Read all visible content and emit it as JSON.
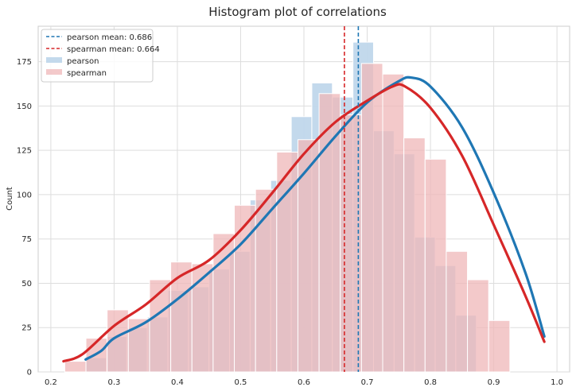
{
  "chart_data": {
    "type": "bar",
    "title": "Histogram plot of correlations",
    "xlabel": "",
    "ylabel": "Count",
    "xlim": [
      0.18,
      1.02
    ],
    "ylim": [
      0,
      195
    ],
    "xticks": [
      "0.2",
      "0.3",
      "0.4",
      "0.5",
      "0.6",
      "0.7",
      "0.8",
      "0.9",
      "1.0"
    ],
    "yticks": [
      "0",
      "25",
      "50",
      "75",
      "100",
      "125",
      "150",
      "175"
    ],
    "grid": true,
    "legend_position": "top-left",
    "colors": {
      "pearson": "#1f77b4",
      "spearman": "#d62728",
      "pearson_fill": "#c0d7eb",
      "spearman_fill": "#efb7b8",
      "grid": "#dddddd"
    },
    "mean_lines": [
      {
        "label": "pearson mean: 0.686",
        "value": 0.686,
        "series": "pearson"
      },
      {
        "label": "spearman mean: 0.664",
        "value": 0.664,
        "series": "spearman"
      }
    ],
    "series": [
      {
        "name": "pearson",
        "bin_start": 0.255,
        "bin_width": 0.0325,
        "counts": [
          8,
          20,
          25,
          31,
          46,
          48,
          58,
          68,
          97,
          108,
          144,
          163,
          155,
          186,
          136,
          123,
          76,
          60,
          32
        ],
        "kde": [
          [
            0.255,
            7
          ],
          [
            0.28,
            12
          ],
          [
            0.3,
            19
          ],
          [
            0.35,
            28
          ],
          [
            0.4,
            41
          ],
          [
            0.45,
            56
          ],
          [
            0.5,
            72
          ],
          [
            0.55,
            92
          ],
          [
            0.6,
            112
          ],
          [
            0.65,
            133
          ],
          [
            0.7,
            152
          ],
          [
            0.75,
            164
          ],
          [
            0.77,
            166
          ],
          [
            0.8,
            161
          ],
          [
            0.85,
            138
          ],
          [
            0.9,
            101
          ],
          [
            0.95,
            56
          ],
          [
            0.98,
            20
          ]
        ]
      },
      {
        "name": "spearman",
        "bin_start": 0.222,
        "bin_width": 0.0335,
        "counts": [
          6,
          19,
          35,
          30,
          52,
          62,
          61,
          78,
          94,
          103,
          124,
          131,
          157,
          145,
          174,
          168,
          132,
          120,
          68,
          52,
          29
        ],
        "kde": [
          [
            0.22,
            6
          ],
          [
            0.25,
            10
          ],
          [
            0.3,
            26
          ],
          [
            0.35,
            38
          ],
          [
            0.4,
            53
          ],
          [
            0.45,
            63
          ],
          [
            0.5,
            80
          ],
          [
            0.55,
            101
          ],
          [
            0.6,
            123
          ],
          [
            0.65,
            141
          ],
          [
            0.7,
            153
          ],
          [
            0.74,
            161
          ],
          [
            0.76,
            161
          ],
          [
            0.8,
            149
          ],
          [
            0.85,
            122
          ],
          [
            0.9,
            83
          ],
          [
            0.95,
            43
          ],
          [
            0.98,
            17
          ]
        ]
      }
    ]
  }
}
